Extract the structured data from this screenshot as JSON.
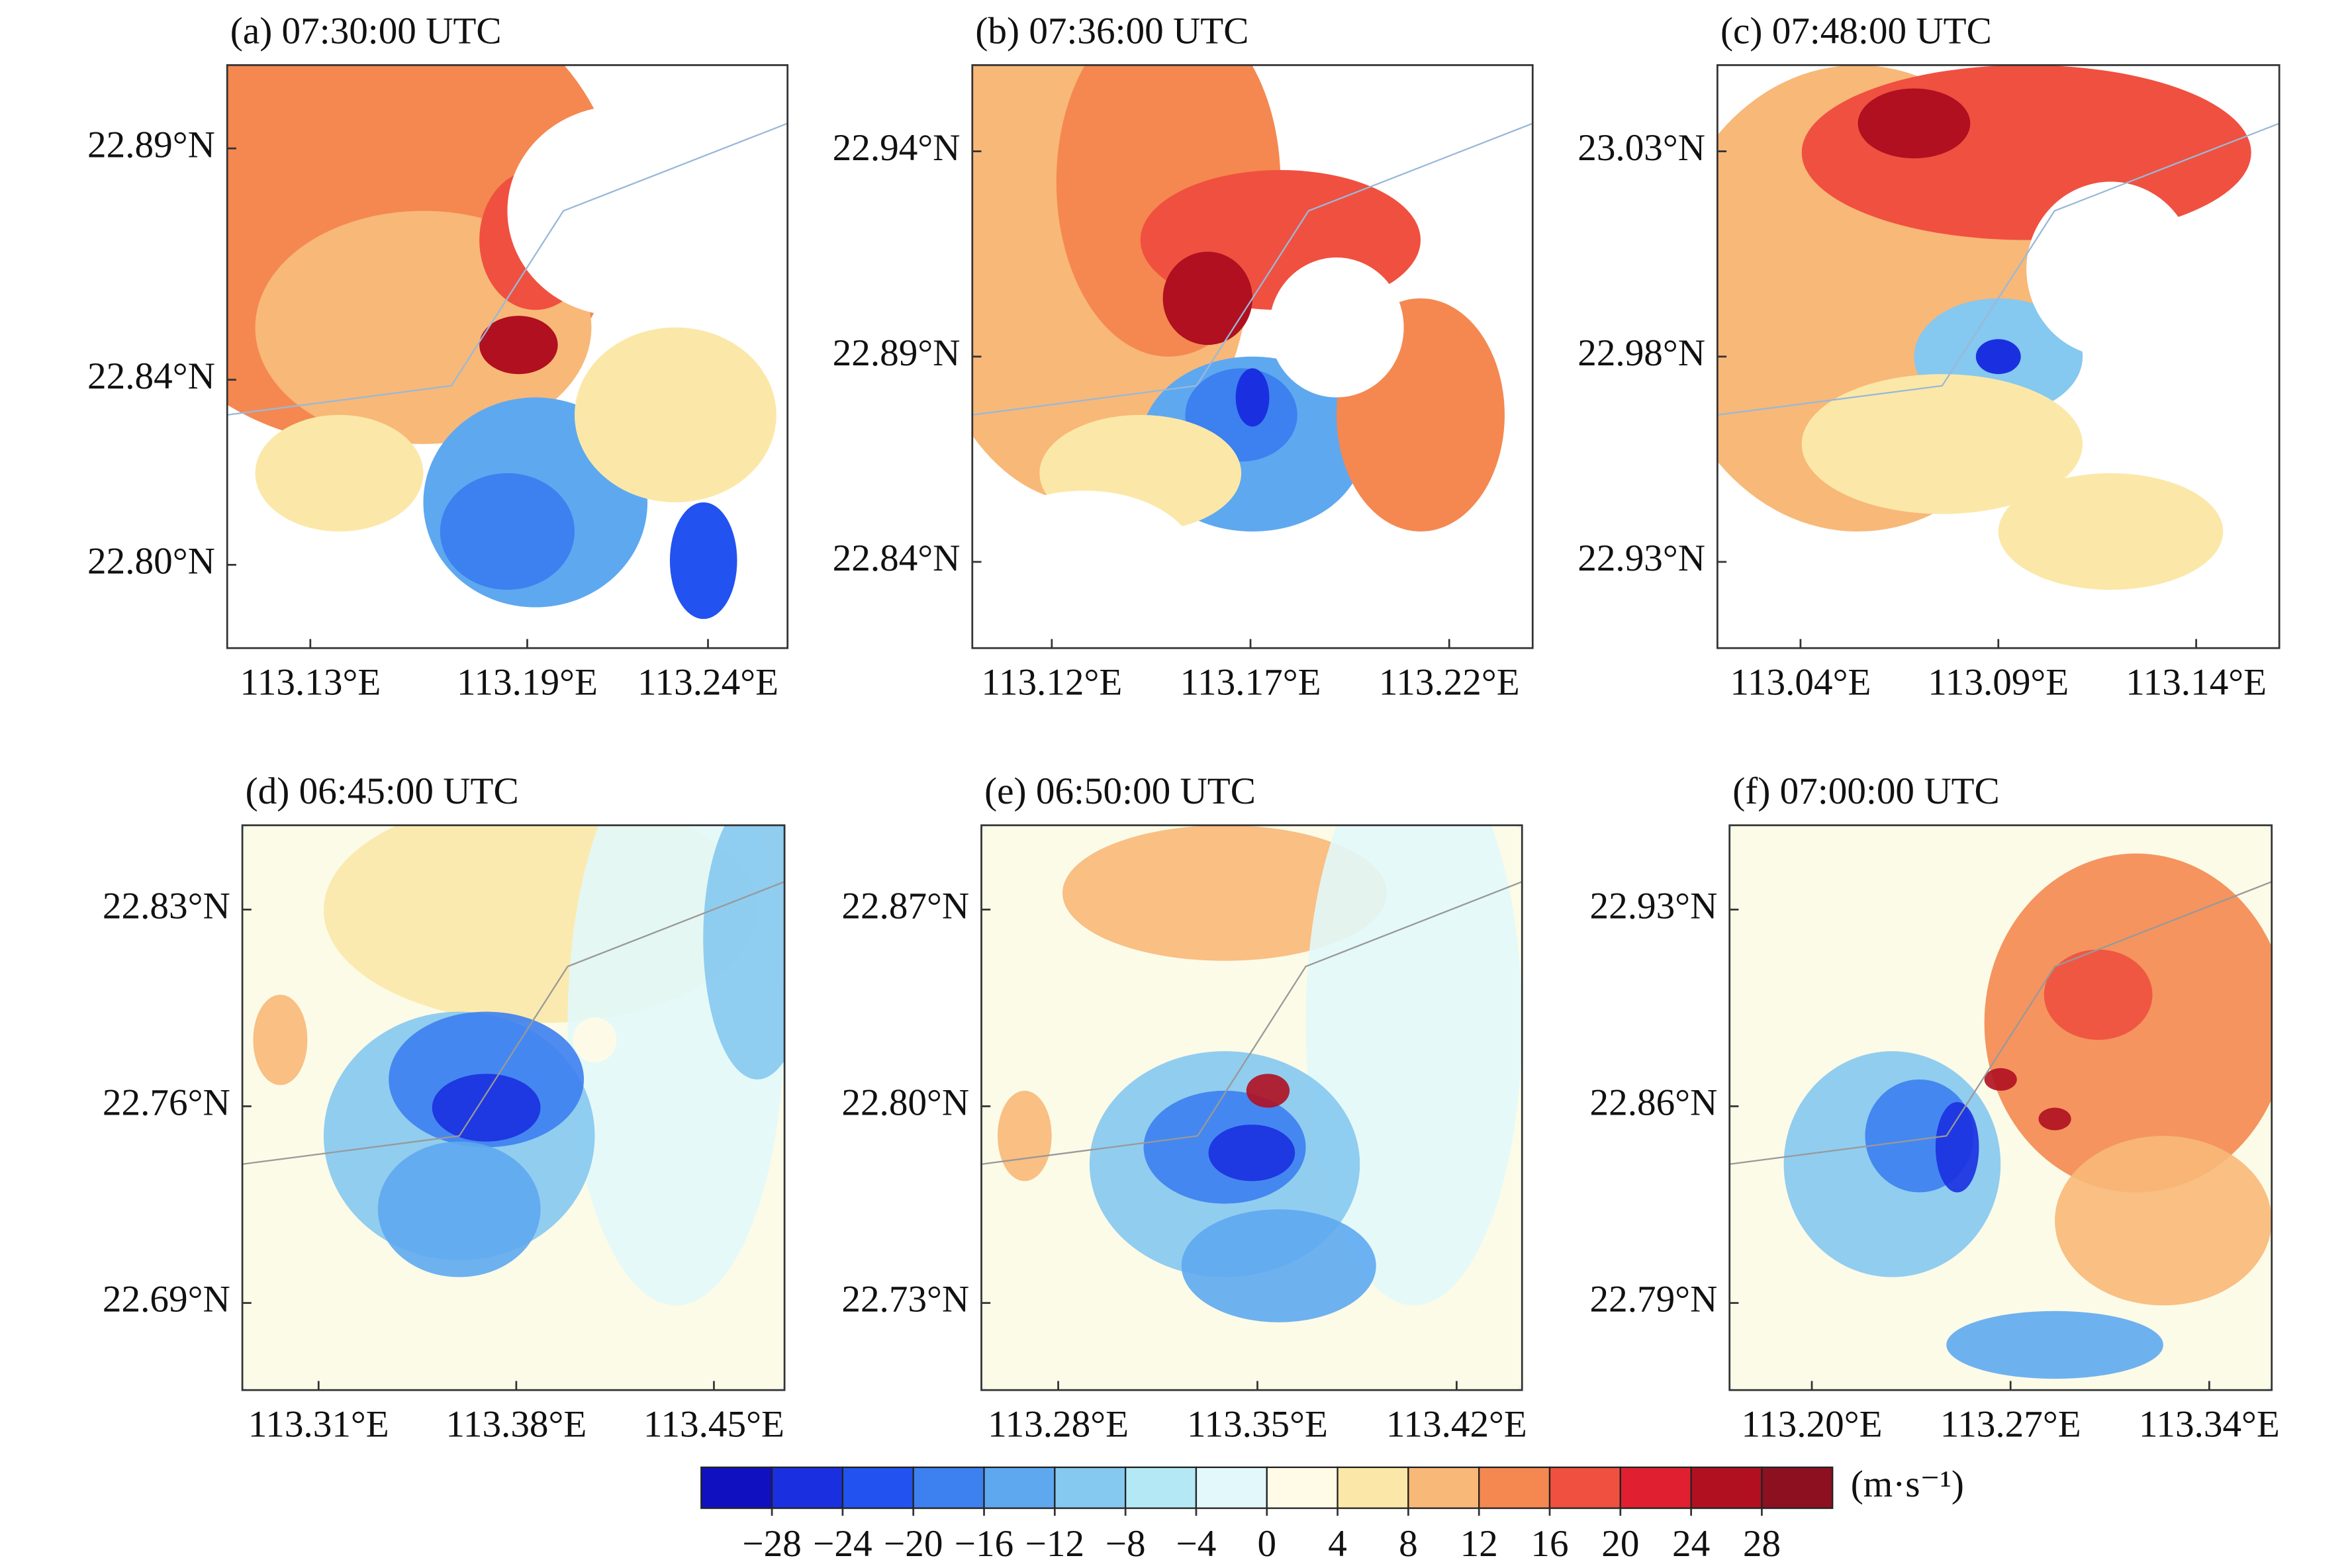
{
  "panels": [
    {
      "title": "(a) 07:30:00 UTC",
      "xlim": [
        113.107,
        113.262
      ],
      "ylim": [
        22.782,
        22.908
      ],
      "xticks": [
        {
          "value": 113.13,
          "label": "113.13°E"
        },
        {
          "value": 113.19,
          "label": "113.19°E"
        },
        {
          "value": 113.24,
          "label": "113.24°E"
        }
      ],
      "yticks": [
        {
          "value": 22.89,
          "label": "22.89°N"
        },
        {
          "value": 22.84,
          "label": "22.84°N"
        },
        {
          "value": 22.8,
          "label": "22.80°N"
        }
      ]
    },
    {
      "title": "(b) 07:36:00 UTC",
      "xlim": [
        113.1,
        113.241
      ],
      "ylim": [
        22.819,
        22.961
      ],
      "xticks": [
        {
          "value": 113.12,
          "label": "113.12°E"
        },
        {
          "value": 113.17,
          "label": "113.17°E"
        },
        {
          "value": 113.22,
          "label": "113.22°E"
        }
      ],
      "yticks": [
        {
          "value": 22.94,
          "label": "22.94°N"
        },
        {
          "value": 22.89,
          "label": "22.89°N"
        },
        {
          "value": 22.84,
          "label": "22.84°N"
        }
      ]
    },
    {
      "title": "(c) 07:48:00 UTC",
      "xlim": [
        113.019,
        113.161
      ],
      "ylim": [
        22.909,
        23.051
      ],
      "xticks": [
        {
          "value": 113.04,
          "label": "113.04°E"
        },
        {
          "value": 113.09,
          "label": "113.09°E"
        },
        {
          "value": 113.14,
          "label": "113.14°E"
        }
      ],
      "yticks": [
        {
          "value": 23.03,
          "label": "23.03°N"
        },
        {
          "value": 22.98,
          "label": "22.98°N"
        },
        {
          "value": 22.93,
          "label": "22.93°N"
        }
      ]
    },
    {
      "title": "(d) 06:45:00 UTC",
      "xlim": [
        113.283,
        113.475
      ],
      "ylim": [
        22.659,
        22.86
      ],
      "xticks": [
        {
          "value": 113.31,
          "label": "113.31°E"
        },
        {
          "value": 113.38,
          "label": "113.38°E"
        },
        {
          "value": 113.45,
          "label": "113.45°E"
        }
      ],
      "yticks": [
        {
          "value": 22.83,
          "label": "22.83°N"
        },
        {
          "value": 22.76,
          "label": "22.76°N"
        },
        {
          "value": 22.69,
          "label": "22.69°N"
        }
      ]
    },
    {
      "title": "(e) 06:50:00 UTC",
      "xlim": [
        113.253,
        113.443
      ],
      "ylim": [
        22.699,
        22.9
      ],
      "xticks": [
        {
          "value": 113.28,
          "label": "113.28°E"
        },
        {
          "value": 113.35,
          "label": "113.35°E"
        },
        {
          "value": 113.42,
          "label": "113.42°E"
        }
      ],
      "yticks": [
        {
          "value": 22.87,
          "label": "22.87°N"
        },
        {
          "value": 22.8,
          "label": "22.80°N"
        },
        {
          "value": 22.73,
          "label": "22.73°N"
        }
      ]
    },
    {
      "title": "(f) 07:00:00 UTC",
      "xlim": [
        113.171,
        113.362
      ],
      "ylim": [
        22.759,
        22.96
      ],
      "xticks": [
        {
          "value": 113.2,
          "label": "113.20°E"
        },
        {
          "value": 113.27,
          "label": "113.27°E"
        },
        {
          "value": 113.34,
          "label": "113.34°E"
        }
      ],
      "yticks": [
        {
          "value": 22.93,
          "label": "22.93°N"
        },
        {
          "value": 22.86,
          "label": "22.86°N"
        },
        {
          "value": 22.79,
          "label": "22.79°N"
        }
      ]
    }
  ],
  "colorbar": {
    "lim": [
      -32,
      32
    ],
    "unit": "(m·s⁻¹)",
    "colors": [
      "#1010c0",
      "#1a30e0",
      "#2252f0",
      "#3d80f0",
      "#5ea8f0",
      "#85c8f0",
      "#b4e8f5",
      "#e2f8fa",
      "#fffbe6",
      "#fbe8a8",
      "#f8b878",
      "#f48850",
      "#f05040",
      "#e02030",
      "#b01020",
      "#8c1020"
    ],
    "ticks": [
      {
        "value": -28,
        "label": "−28"
      },
      {
        "value": -24,
        "label": "−24"
      },
      {
        "value": -20,
        "label": "−20"
      },
      {
        "value": -16,
        "label": "−16"
      },
      {
        "value": -12,
        "label": "−12"
      },
      {
        "value": -8,
        "label": "−8"
      },
      {
        "value": -4,
        "label": "−4"
      },
      0,
      4,
      8,
      12,
      16,
      20,
      24,
      28
    ]
  }
}
